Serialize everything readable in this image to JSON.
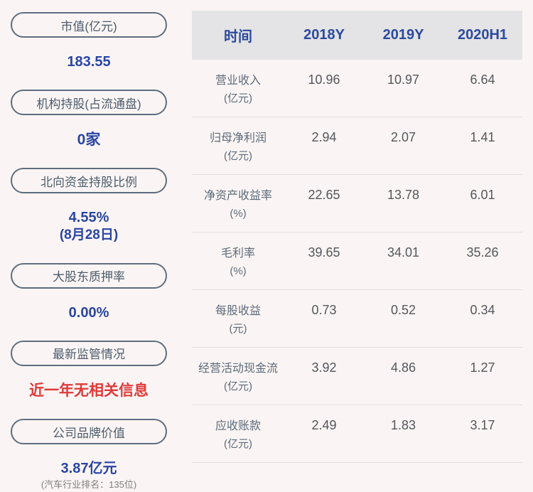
{
  "accent_colors": {
    "value_blue": "#2945a5",
    "alert_red": "#e03a3a",
    "header_blue": "#2b4a9e",
    "pill_border": "#5e6d7e",
    "background": "#faf5f4",
    "header_bg": "#e4e3e5"
  },
  "sidebar": {
    "stats": [
      {
        "label": "市值(亿元)",
        "value": "183.55"
      },
      {
        "label": "机构持股(占流通盘)",
        "value": "0家"
      },
      {
        "label": "北向资金持股比例",
        "value": "4.55%",
        "sub": "(8月28日)"
      },
      {
        "label": "大股东质押率",
        "value": "0.00%"
      },
      {
        "label": "最新监管情况",
        "value": "近一年无相关信息"
      },
      {
        "label": "公司品牌价值",
        "value": "3.87亿元",
        "note": "(汽车行业排名：135位)"
      }
    ]
  },
  "table": {
    "header": [
      "时间",
      "2018Y",
      "2019Y",
      "2020H1"
    ],
    "rows": [
      {
        "name": "营业收入",
        "unit": "(亿元)",
        "values": [
          "10.96",
          "10.97",
          "6.64"
        ]
      },
      {
        "name": "归母净利润",
        "unit": "(亿元)",
        "values": [
          "2.94",
          "2.07",
          "1.41"
        ]
      },
      {
        "name": "净资产收益率",
        "unit": "(%)",
        "values": [
          "22.65",
          "13.78",
          "6.01"
        ]
      },
      {
        "name": "毛利率",
        "unit": "(%)",
        "values": [
          "39.65",
          "34.01",
          "35.26"
        ]
      },
      {
        "name": "每股收益",
        "unit": "(元)",
        "values": [
          "0.73",
          "0.52",
          "0.34"
        ]
      },
      {
        "name": "经营活动现金流",
        "unit": "(亿元)",
        "values": [
          "3.92",
          "4.86",
          "1.27"
        ]
      },
      {
        "name": "应收账款",
        "unit": "(亿元)",
        "values": [
          "2.49",
          "1.83",
          "3.17"
        ]
      }
    ]
  }
}
